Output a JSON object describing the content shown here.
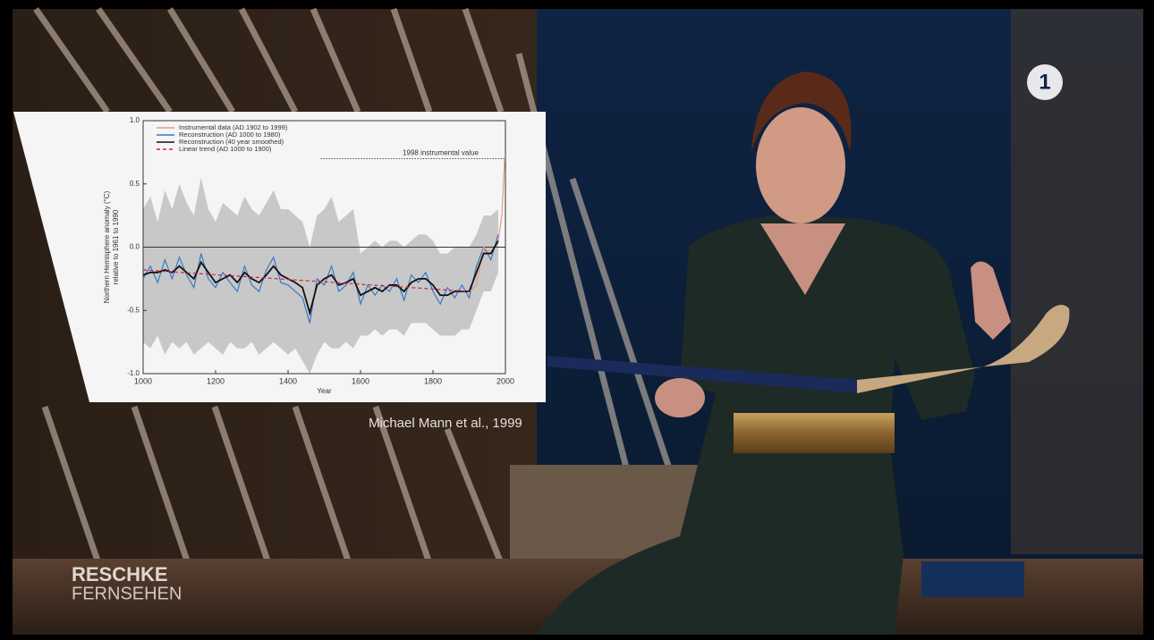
{
  "chart_data": {
    "type": "line",
    "xlabel": "Year",
    "ylabel": [
      "Northern Hemisphere anomaly (°C)",
      "relative to 1961 to 1990"
    ],
    "xlim": [
      1000,
      2000
    ],
    "xticks": [
      1000,
      1200,
      1400,
      1600,
      1800,
      2000
    ],
    "ylim": [
      -1.0,
      1.0
    ],
    "yticks": [
      {
        "value": -1.0,
        "label": "-1.0"
      },
      {
        "value": -0.5,
        "label": "-0.5"
      },
      {
        "value": 0.0,
        "label": "0.0"
      },
      {
        "value": 0.5,
        "label": "0.5"
      },
      {
        "value": 1.0,
        "label": "1.0"
      }
    ],
    "hlines": [
      0
    ],
    "annotations": [
      {
        "text": "1998 instrumental value",
        "x": 1490,
        "y": 0.7
      }
    ],
    "band": {
      "color": "#c8c8c8",
      "x": [
        1000,
        1020,
        1040,
        1060,
        1080,
        1100,
        1120,
        1140,
        1160,
        1180,
        1200,
        1220,
        1240,
        1260,
        1280,
        1300,
        1320,
        1340,
        1360,
        1380,
        1400,
        1420,
        1440,
        1460,
        1480,
        1500,
        1520,
        1540,
        1560,
        1580,
        1600,
        1620,
        1640,
        1660,
        1680,
        1700,
        1720,
        1740,
        1760,
        1780,
        1800,
        1820,
        1840,
        1860,
        1880,
        1900,
        1920,
        1940,
        1960,
        1980
      ],
      "upper": [
        0.3,
        0.4,
        0.2,
        0.45,
        0.3,
        0.5,
        0.35,
        0.25,
        0.55,
        0.3,
        0.2,
        0.35,
        0.3,
        0.25,
        0.4,
        0.3,
        0.25,
        0.35,
        0.45,
        0.3,
        0.3,
        0.25,
        0.2,
        0.0,
        0.25,
        0.3,
        0.4,
        0.2,
        0.25,
        0.3,
        -0.05,
        0.0,
        0.05,
        0.0,
        0.05,
        0.05,
        0.0,
        0.05,
        0.1,
        0.1,
        0.05,
        -0.05,
        -0.05,
        0.0,
        0.0,
        0.0,
        0.1,
        0.25,
        0.25,
        0.3
      ],
      "lower": [
        -0.75,
        -0.8,
        -0.7,
        -0.85,
        -0.75,
        -0.8,
        -0.75,
        -0.85,
        -0.8,
        -0.75,
        -0.8,
        -0.85,
        -0.75,
        -0.8,
        -0.8,
        -0.75,
        -0.85,
        -0.8,
        -0.75,
        -0.8,
        -0.85,
        -0.8,
        -0.9,
        -1.0,
        -0.85,
        -0.75,
        -0.8,
        -0.8,
        -0.75,
        -0.8,
        -0.7,
        -0.7,
        -0.65,
        -0.7,
        -0.65,
        -0.65,
        -0.7,
        -0.6,
        -0.6,
        -0.6,
        -0.65,
        -0.7,
        -0.7,
        -0.7,
        -0.65,
        -0.65,
        -0.5,
        -0.35,
        -0.35,
        -0.2
      ]
    },
    "series": [
      {
        "name": "Instrumental data (AD 1902 to 1999)",
        "color": "#e89a8a",
        "x": [
          1902,
          1920,
          1940,
          1960,
          1980,
          1990,
          1998
        ],
        "values": [
          -0.35,
          -0.3,
          0.0,
          -0.05,
          0.05,
          0.25,
          0.7
        ]
      },
      {
        "name": "Reconstruction (AD 1000 to 1980)",
        "color": "#3a78c8",
        "x": [
          1000,
          1020,
          1040,
          1060,
          1080,
          1100,
          1120,
          1140,
          1160,
          1180,
          1200,
          1220,
          1240,
          1260,
          1280,
          1300,
          1320,
          1340,
          1360,
          1380,
          1400,
          1420,
          1440,
          1460,
          1480,
          1500,
          1520,
          1540,
          1560,
          1580,
          1600,
          1620,
          1640,
          1660,
          1680,
          1700,
          1720,
          1740,
          1760,
          1780,
          1800,
          1820,
          1840,
          1860,
          1880,
          1900,
          1920,
          1940,
          1960,
          1980
        ],
        "values": [
          -0.25,
          -0.15,
          -0.28,
          -0.1,
          -0.25,
          -0.08,
          -0.22,
          -0.32,
          -0.05,
          -0.25,
          -0.32,
          -0.2,
          -0.28,
          -0.35,
          -0.15,
          -0.3,
          -0.35,
          -0.18,
          -0.08,
          -0.28,
          -0.3,
          -0.35,
          -0.4,
          -0.6,
          -0.25,
          -0.3,
          -0.15,
          -0.35,
          -0.3,
          -0.2,
          -0.45,
          -0.3,
          -0.38,
          -0.3,
          -0.35,
          -0.25,
          -0.42,
          -0.22,
          -0.28,
          -0.2,
          -0.35,
          -0.45,
          -0.32,
          -0.4,
          -0.3,
          -0.4,
          -0.15,
          0.0,
          -0.1,
          0.1
        ]
      },
      {
        "name": "Reconstruction (40 year smoothed)",
        "color": "#111111",
        "x": [
          1000,
          1020,
          1040,
          1060,
          1080,
          1100,
          1120,
          1140,
          1160,
          1180,
          1200,
          1220,
          1240,
          1260,
          1280,
          1300,
          1320,
          1340,
          1360,
          1380,
          1400,
          1420,
          1440,
          1460,
          1480,
          1500,
          1520,
          1540,
          1560,
          1580,
          1600,
          1620,
          1640,
          1660,
          1680,
          1700,
          1720,
          1740,
          1760,
          1780,
          1800,
          1820,
          1840,
          1860,
          1880,
          1900,
          1920,
          1940,
          1960,
          1980
        ],
        "values": [
          -0.22,
          -0.2,
          -0.2,
          -0.18,
          -0.2,
          -0.15,
          -0.2,
          -0.25,
          -0.12,
          -0.2,
          -0.28,
          -0.25,
          -0.22,
          -0.28,
          -0.2,
          -0.25,
          -0.28,
          -0.22,
          -0.15,
          -0.22,
          -0.25,
          -0.28,
          -0.32,
          -0.52,
          -0.3,
          -0.25,
          -0.22,
          -0.3,
          -0.28,
          -0.25,
          -0.38,
          -0.35,
          -0.32,
          -0.35,
          -0.3,
          -0.3,
          -0.35,
          -0.28,
          -0.25,
          -0.25,
          -0.3,
          -0.38,
          -0.38,
          -0.35,
          -0.35,
          -0.35,
          -0.2,
          -0.05,
          -0.05,
          0.05
        ]
      },
      {
        "name": "Linear trend (AD 1000 to 1900)",
        "color": "#d0204a",
        "dashed": true,
        "x": [
          1000,
          1900
        ],
        "values": [
          -0.18,
          -0.35
        ]
      }
    ]
  },
  "caption": "Michael Mann et al., 1999",
  "show_logo": [
    "RESCHKE",
    "FERNSEHEN"
  ],
  "channel_logo": "1"
}
